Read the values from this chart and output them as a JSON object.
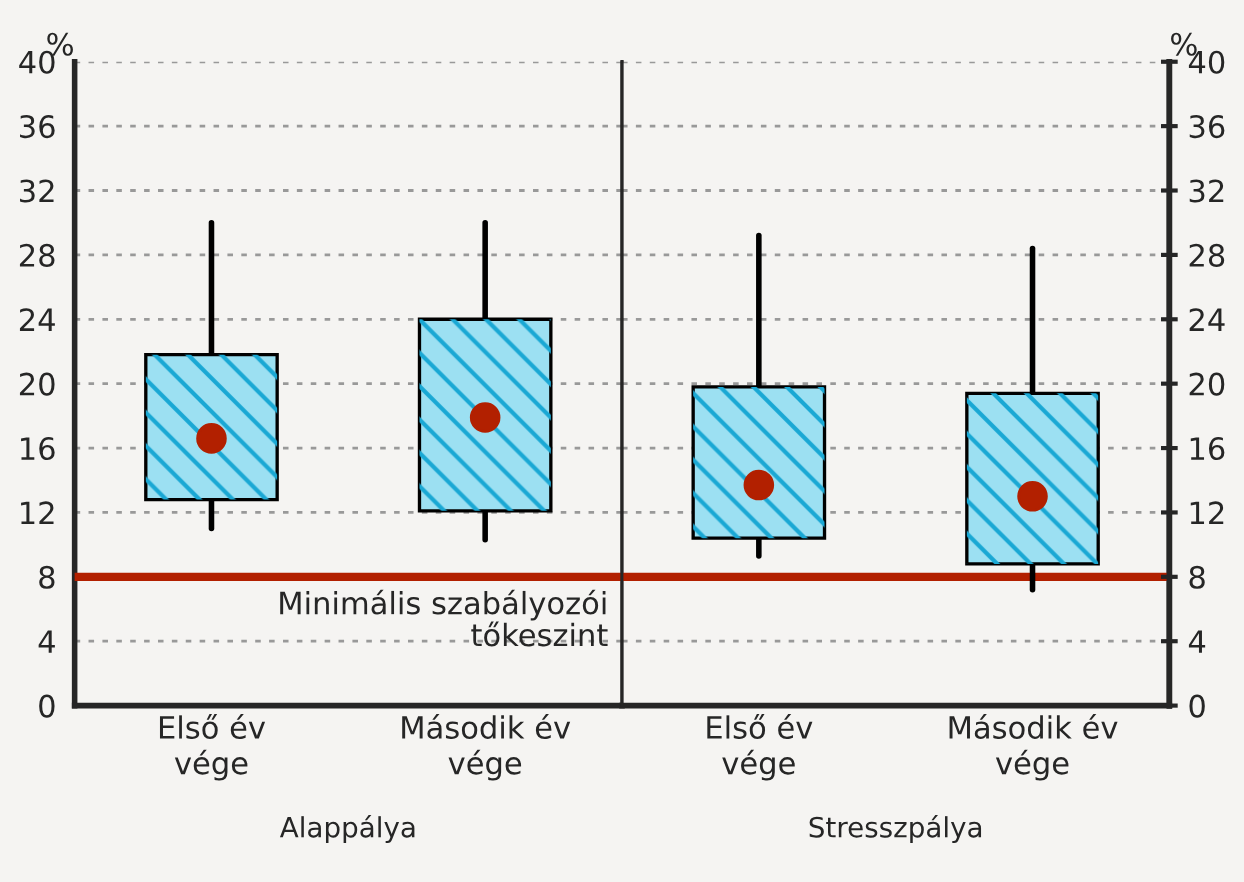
{
  "chart_data": [
    {
      "type": "box",
      "ylabel": "%",
      "categories": [
        "Első év\nvége",
        "Második év\nvége"
      ],
      "boxes": [
        {
          "low": 11,
          "q1": 12.8,
          "q3": 21.8,
          "high": 30,
          "mean": 16.6
        },
        {
          "low": 10.3,
          "q1": 12.1,
          "q3": 24,
          "high": 30,
          "mean": 17.9
        }
      ],
      "color": "#9ce0f2",
      "ylim": [
        0,
        40
      ],
      "yticks": [
        0,
        4,
        8,
        12,
        16,
        20,
        24,
        28,
        32,
        36,
        40
      ],
      "grid": "y",
      "ref_lines": [
        {
          "axis": "y",
          "value": 8,
          "label": "Minimális szabályozói\ntőkeszint",
          "color": "#b22000"
        }
      ],
      "annotations": [
        "Alappálya"
      ]
    },
    {
      "type": "box",
      "y2label": "%",
      "categories": [
        "Első év\nvége",
        "Második év\nvége"
      ],
      "series": [
        {
          "axis": "y2",
          "color": "#9ce0f2",
          "boxes": [
            {
              "low": 9.3,
              "q1": 10.4,
              "q3": 19.8,
              "high": 29.2,
              "mean": 13.7
            },
            {
              "low": 7.2,
              "q1": 8.8,
              "q3": 19.4,
              "high": 28.4,
              "mean": 13.0
            }
          ]
        }
      ],
      "y2lim": [
        0,
        40
      ],
      "y2ticks": [
        0,
        4,
        8,
        12,
        16,
        20,
        24,
        28,
        32,
        36,
        40
      ],
      "grid": "y",
      "ref_lines": [
        {
          "axis": "y2",
          "value": 8,
          "color": "#b22000"
        }
      ],
      "annotations": [
        "Stresszpálya"
      ]
    }
  ]
}
